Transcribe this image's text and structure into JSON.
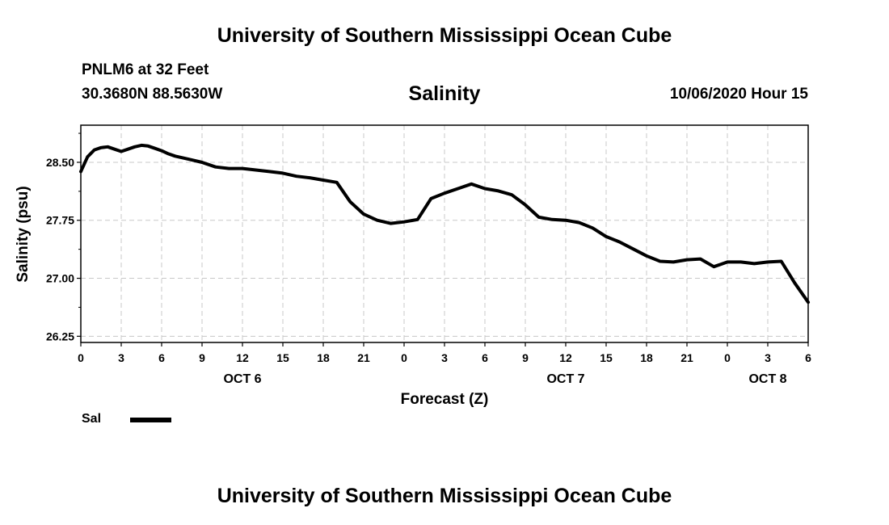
{
  "page": {
    "header_title": "University of Southern Mississippi Ocean Cube",
    "footer_title": "University of Southern Mississippi Ocean Cube",
    "station": "PNLM6 at 32 Feet",
    "coordinates": "30.3680N 88.5630W",
    "run_time": "10/06/2020 Hour 15"
  },
  "chart_data": {
    "type": "line",
    "title": "Salinity",
    "xlabel": "Forecast (Z)",
    "ylabel": "Salinity (psu)",
    "x_unit": "hours since 10/06 00Z",
    "xlim": [
      0,
      54
    ],
    "ylim": [
      26.17,
      28.98
    ],
    "y_ticks": [
      26.25,
      27.0,
      27.75,
      28.5
    ],
    "y_tick_labels": [
      "26.25",
      "27.00",
      "27.75",
      "28.50"
    ],
    "x_ticks": [
      0,
      3,
      6,
      9,
      12,
      15,
      18,
      21,
      24,
      27,
      30,
      33,
      36,
      39,
      42,
      45,
      48,
      51,
      54
    ],
    "x_tick_labels": [
      "0",
      "3",
      "6",
      "9",
      "12",
      "15",
      "18",
      "21",
      "0",
      "3",
      "6",
      "9",
      "12",
      "15",
      "18",
      "21",
      "0",
      "3",
      "6"
    ],
    "date_labels": [
      {
        "x": 12,
        "label": "OCT 6"
      },
      {
        "x": 36,
        "label": "OCT 7"
      },
      {
        "x": 51,
        "label": "OCT 8"
      }
    ],
    "grid": true,
    "legend": {
      "position": "bottom-left",
      "label": "Sal"
    },
    "series": [
      {
        "name": "Sal",
        "color": "#000000",
        "x": [
          0,
          0.5,
          1,
          1.5,
          2,
          2.5,
          3,
          3.5,
          4,
          4.5,
          5,
          5.5,
          6,
          6.5,
          7,
          8,
          9,
          10,
          11,
          12,
          13,
          14,
          15,
          16,
          17,
          18,
          19,
          20,
          21,
          22,
          23,
          24,
          25,
          26,
          27,
          28,
          29,
          30,
          31,
          32,
          33,
          34,
          35,
          36,
          37,
          38,
          39,
          40,
          41,
          42,
          43,
          44,
          45,
          46,
          47,
          48,
          49,
          50,
          51,
          52,
          53,
          54
        ],
        "values": [
          28.38,
          28.57,
          28.66,
          28.69,
          28.7,
          28.67,
          28.64,
          28.67,
          28.7,
          28.72,
          28.71,
          28.68,
          28.65,
          28.61,
          28.58,
          28.54,
          28.5,
          28.44,
          28.42,
          28.42,
          28.4,
          28.38,
          28.36,
          28.32,
          28.3,
          28.27,
          28.24,
          27.99,
          27.83,
          27.75,
          27.71,
          27.73,
          27.76,
          28.03,
          28.1,
          28.16,
          28.22,
          28.16,
          28.13,
          28.08,
          27.95,
          27.79,
          27.76,
          27.75,
          27.72,
          27.65,
          27.54,
          27.47,
          27.38,
          27.29,
          27.22,
          27.21,
          27.24,
          27.25,
          27.15,
          27.21,
          27.21,
          27.19,
          27.21,
          27.22,
          26.94,
          26.69
        ]
      }
    ]
  }
}
